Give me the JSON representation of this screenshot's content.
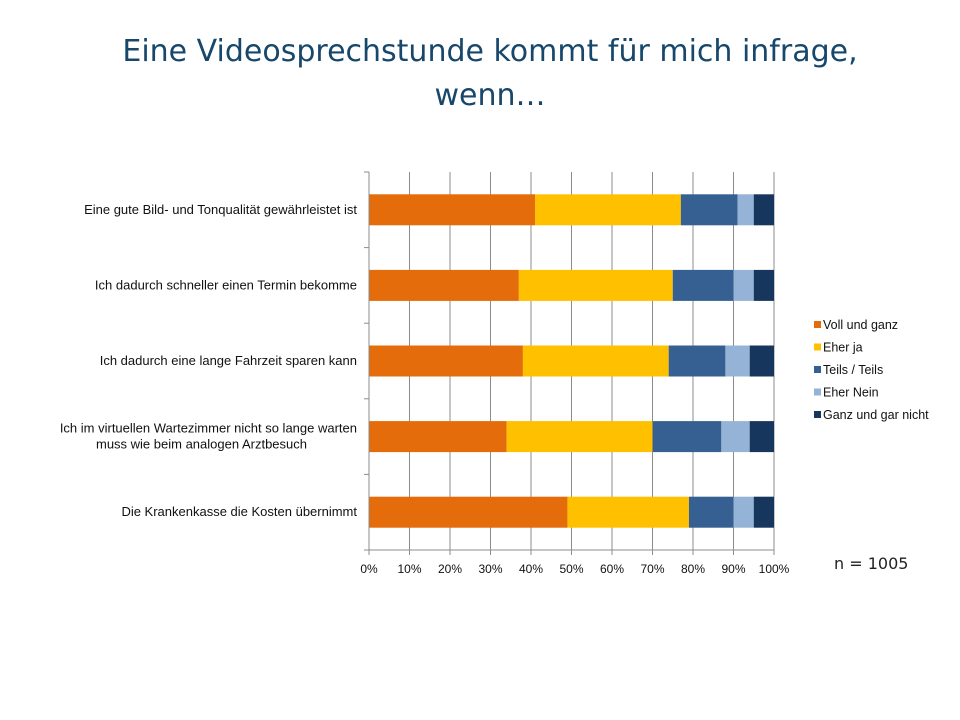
{
  "title_line1": "Eine Videosprechstunde kommt für mich infrage,",
  "title_line2": "wenn…",
  "n_label": "n = 1005",
  "chart_data": {
    "type": "bar",
    "orientation": "horizontal",
    "stacked": true,
    "percent_stacked": true,
    "categories": [
      [
        "Eine gute Bild- und Tonqualität gewährleistet ist"
      ],
      [
        "Ich dadurch schneller einen Termin bekomme"
      ],
      [
        "Ich dadurch eine lange Fahrzeit sparen kann"
      ],
      [
        "Ich im virtuellen Wartezimmer nicht so lange warten",
        "muss wie beim analogen Arztbesuch"
      ],
      [
        "Die Krankenkasse die Kosten übernimmt"
      ]
    ],
    "series": [
      {
        "name": "Voll und ganz",
        "color": "#e46c0a",
        "values": [
          41,
          37,
          38,
          34,
          49
        ]
      },
      {
        "name": "Eher ja",
        "color": "#ffc000",
        "values": [
          36,
          38,
          36,
          36,
          30
        ]
      },
      {
        "name": "Teils / Teils",
        "color": "#366092",
        "values": [
          14,
          15,
          14,
          17,
          11
        ]
      },
      {
        "name": "Eher Nein",
        "color": "#95b3d7",
        "values": [
          4,
          5,
          6,
          7,
          5
        ]
      },
      {
        "name": "Ganz und gar nicht",
        "color": "#17365d",
        "values": [
          5,
          5,
          6,
          6,
          5
        ]
      }
    ],
    "x_ticks": [
      "0%",
      "10%",
      "20%",
      "30%",
      "40%",
      "50%",
      "60%",
      "70%",
      "80%",
      "90%",
      "100%"
    ],
    "xlim": [
      0,
      100
    ],
    "grid": true,
    "legend_position": "right"
  }
}
